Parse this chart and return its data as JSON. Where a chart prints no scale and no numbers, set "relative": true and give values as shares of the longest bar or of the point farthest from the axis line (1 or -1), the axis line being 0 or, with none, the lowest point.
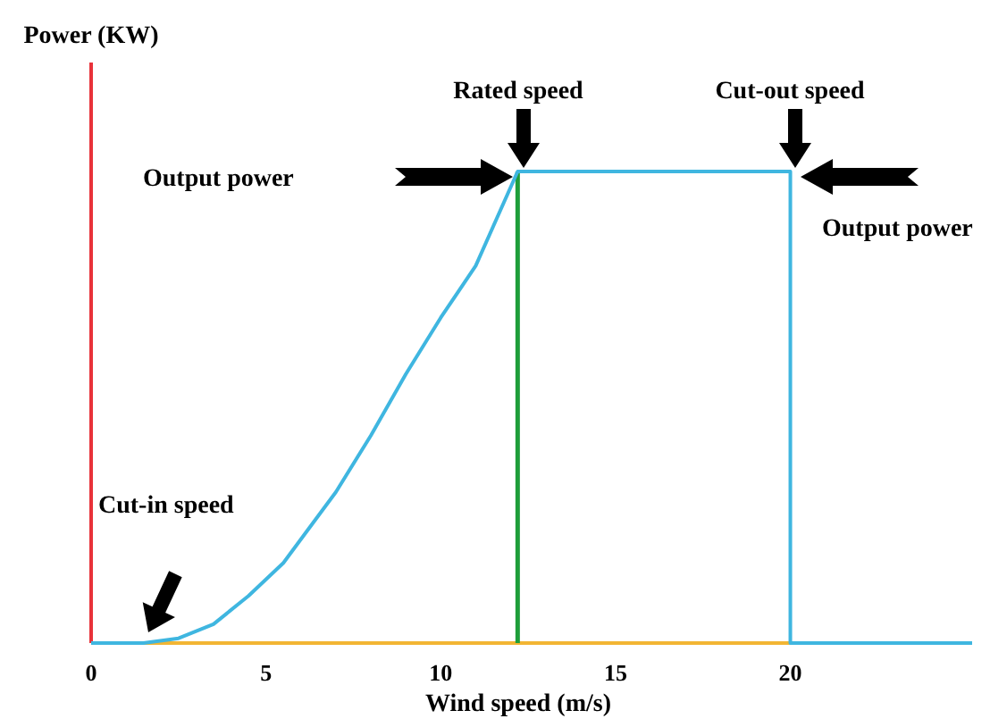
{
  "chart_data": {
    "type": "line",
    "relative": true,
    "xlabel": "Wind speed (m/s)",
    "ylabel": "Power (KW)",
    "xlim": [
      0,
      25.2
    ],
    "xticks": [
      0,
      5,
      10,
      15,
      20
    ],
    "grid": false,
    "marker": "none",
    "line_style": "solid",
    "x": [
      0,
      1.5,
      2.5,
      3.5,
      4.5,
      5.5,
      6.1,
      7,
      8,
      9,
      10,
      11,
      12.2,
      20,
      20,
      25.2
    ],
    "series": [
      {
        "color": "#3fb6e0",
        "values": [
          0,
          0,
          0.01,
          0.04,
          0.1,
          0.17,
          0.23,
          0.32,
          0.44,
          0.57,
          0.69,
          0.8,
          1,
          1,
          0,
          0
        ]
      }
    ],
    "ref_lines": [
      {
        "axis": "x",
        "value": 12.2,
        "color": "#1e9e3a"
      }
    ],
    "annotations": [
      "Rated speed",
      "Cut-out speed",
      "Output power",
      "Output power",
      "Cut-in speed"
    ]
  }
}
